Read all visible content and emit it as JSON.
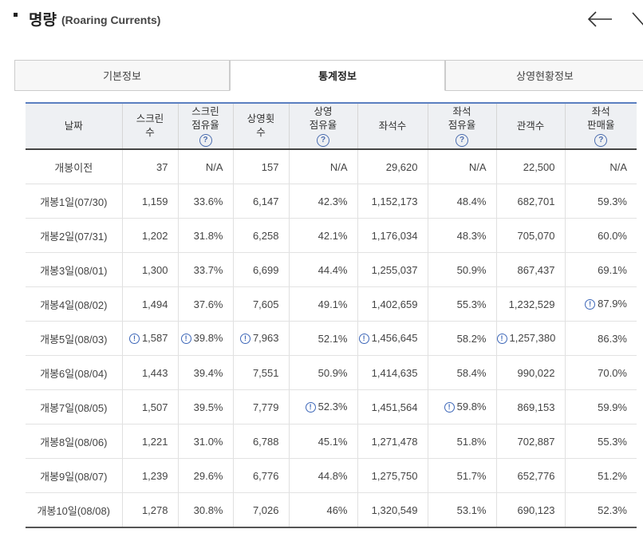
{
  "header": {
    "title": "명량",
    "subtitle": "(Roaring Currents)"
  },
  "tabs": [
    "기본정보",
    "통계정보",
    "상영현황정보"
  ],
  "active_tab": 1,
  "table": {
    "headers": [
      {
        "line1": "날짜",
        "line2": "",
        "help": false
      },
      {
        "line1": "스크린",
        "line2": "수",
        "help": false
      },
      {
        "line1": "스크린",
        "line2": "점유율",
        "help": true
      },
      {
        "line1": "상영횟",
        "line2": "수",
        "help": false
      },
      {
        "line1": "상영",
        "line2": "점유율",
        "help": true
      },
      {
        "line1": "좌석수",
        "line2": "",
        "help": false
      },
      {
        "line1": "좌석",
        "line2": "점유율",
        "help": true
      },
      {
        "line1": "관객수",
        "line2": "",
        "help": false
      },
      {
        "line1": "좌석",
        "line2": "판매율",
        "help": true
      }
    ],
    "help_glyph": "?",
    "rows": [
      {
        "date": "개봉이전",
        "screens": "37",
        "screen_share": "N/A",
        "shows": "157",
        "show_share": "N/A",
        "seats": "29,620",
        "seat_share": "N/A",
        "audience": "22,500",
        "sales_rate": "N/A"
      },
      {
        "date": "개봉1일(07/30)",
        "screens": "1,159",
        "screen_share": "33.6%",
        "shows": "6,147",
        "show_share": "42.3%",
        "seats": "1,152,173",
        "seat_share": "48.4%",
        "audience": "682,701",
        "sales_rate": "59.3%"
      },
      {
        "date": "개봉2일(07/31)",
        "screens": "1,202",
        "screen_share": "31.8%",
        "shows": "6,258",
        "show_share": "42.1%",
        "seats": "1,176,034",
        "seat_share": "48.3%",
        "audience": "705,070",
        "sales_rate": "60.0%"
      },
      {
        "date": "개봉3일(08/01)",
        "screens": "1,300",
        "screen_share": "33.7%",
        "shows": "6,699",
        "show_share": "44.4%",
        "seats": "1,255,037",
        "seat_share": "50.9%",
        "audience": "867,437",
        "sales_rate": "69.1%"
      },
      {
        "date": "개봉4일(08/02)",
        "screens": "1,494",
        "screen_share": "37.6%",
        "shows": "7,605",
        "show_share": "49.1%",
        "seats": "1,402,659",
        "seat_share": "55.3%",
        "audience": "1,232,529",
        "sales_rate": "87.9%",
        "hints": [
          "sales_rate"
        ]
      },
      {
        "date": "개봉5일(08/03)",
        "screens": "1,587",
        "screen_share": "39.8%",
        "shows": "7,963",
        "show_share": "52.1%",
        "seats": "1,456,645",
        "seat_share": "58.2%",
        "audience": "1,257,380",
        "sales_rate": "86.3%",
        "hints": [
          "screens",
          "screen_share",
          "shows",
          "seats",
          "audience"
        ]
      },
      {
        "date": "개봉6일(08/04)",
        "screens": "1,443",
        "screen_share": "39.4%",
        "shows": "7,551",
        "show_share": "50.9%",
        "seats": "1,414,635",
        "seat_share": "58.4%",
        "audience": "990,022",
        "sales_rate": "70.0%"
      },
      {
        "date": "개봉7일(08/05)",
        "screens": "1,507",
        "screen_share": "39.5%",
        "shows": "7,779",
        "show_share": "52.3%",
        "seats": "1,451,564",
        "seat_share": "59.8%",
        "audience": "869,153",
        "sales_rate": "59.9%",
        "hints": [
          "show_share",
          "seat_share"
        ]
      },
      {
        "date": "개봉8일(08/06)",
        "screens": "1,221",
        "screen_share": "31.0%",
        "shows": "6,788",
        "show_share": "45.1%",
        "seats": "1,271,478",
        "seat_share": "51.8%",
        "audience": "702,887",
        "sales_rate": "55.3%"
      },
      {
        "date": "개봉9일(08/07)",
        "screens": "1,239",
        "screen_share": "29.6%",
        "shows": "6,776",
        "show_share": "44.8%",
        "seats": "1,275,750",
        "seat_share": "51.7%",
        "audience": "652,776",
        "sales_rate": "51.2%"
      },
      {
        "date": "개봉10일(08/08)",
        "screens": "1,278",
        "screen_share": "30.8%",
        "shows": "7,026",
        "show_share": "46%",
        "seats": "1,320,549",
        "seat_share": "53.1%",
        "audience": "690,123",
        "sales_rate": "52.3%"
      }
    ],
    "record_glyph": "!"
  },
  "colors": {
    "table_top_border": "#5a7fc0",
    "header_bg": "#eef0f3",
    "record_icon": "#3d67b8"
  }
}
